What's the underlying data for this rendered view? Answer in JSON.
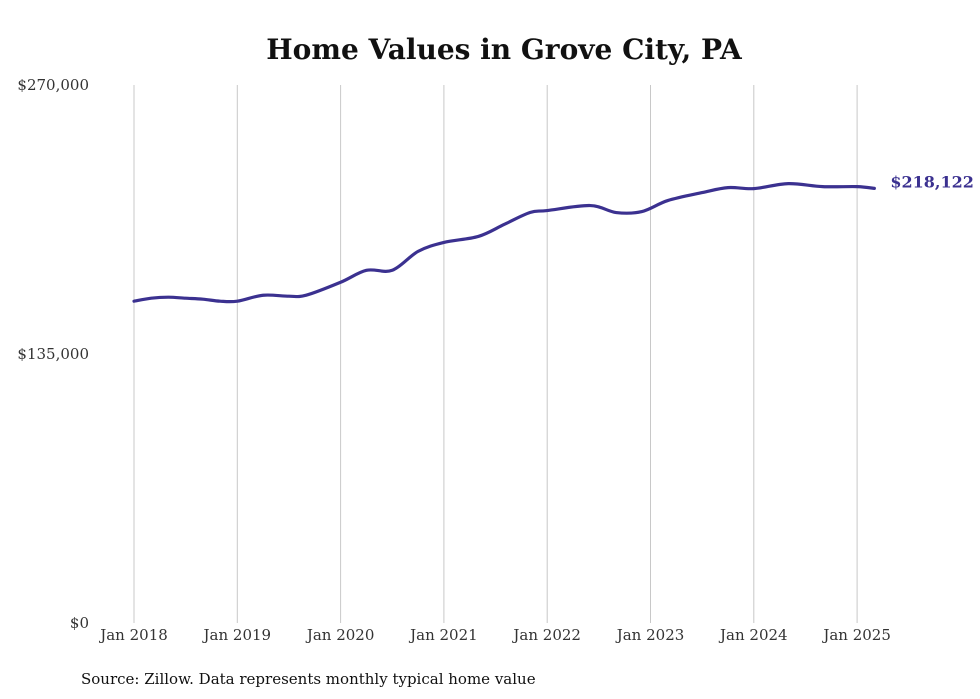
{
  "chart_data": {
    "type": "line",
    "title": "Home Values in Grove City, PA",
    "xlabel": "",
    "ylabel": "",
    "ylim": [
      0,
      270000
    ],
    "y_ticks": [
      "$270,000",
      "$135,000",
      "$0"
    ],
    "y_tick_values": [
      270000,
      135000,
      0
    ],
    "x_ticks": [
      "Jan 2018",
      "Jan 2019",
      "Jan 2020",
      "Jan 2021",
      "Jan 2022",
      "Jan 2023",
      "Jan 2024",
      "Jan 2025"
    ],
    "x_tick_values": [
      2018.0,
      2019.0,
      2020.0,
      2021.0,
      2022.0,
      2023.0,
      2024.0,
      2025.0
    ],
    "xlim": [
      2017.75,
      2025.9
    ],
    "grid": "vertical",
    "series": [
      {
        "color": "#3b3190",
        "x": [
          2018.0,
          2018.167,
          2018.333,
          2018.5,
          2018.667,
          2018.833,
          2019.0,
          2019.25,
          2019.5,
          2019.667,
          2020.0,
          2020.25,
          2020.5,
          2020.75,
          2021.0,
          2021.333,
          2021.583,
          2021.833,
          2022.0,
          2022.417,
          2022.667,
          2022.917,
          2023.167,
          2023.5,
          2023.75,
          2024.0,
          2024.333,
          2024.667,
          2025.0,
          2025.167
        ],
        "values": [
          161500,
          163000,
          163500,
          163000,
          162500,
          161500,
          161500,
          164500,
          164000,
          164500,
          171000,
          177000,
          177000,
          186500,
          191000,
          194000,
          200000,
          206000,
          207000,
          209500,
          206000,
          206500,
          212000,
          216000,
          218500,
          218000,
          220500,
          219000,
          219000,
          218122
        ]
      }
    ],
    "end_label": "$218,122"
  },
  "source_note": "Source: Zillow. Data represents monthly typical home value"
}
